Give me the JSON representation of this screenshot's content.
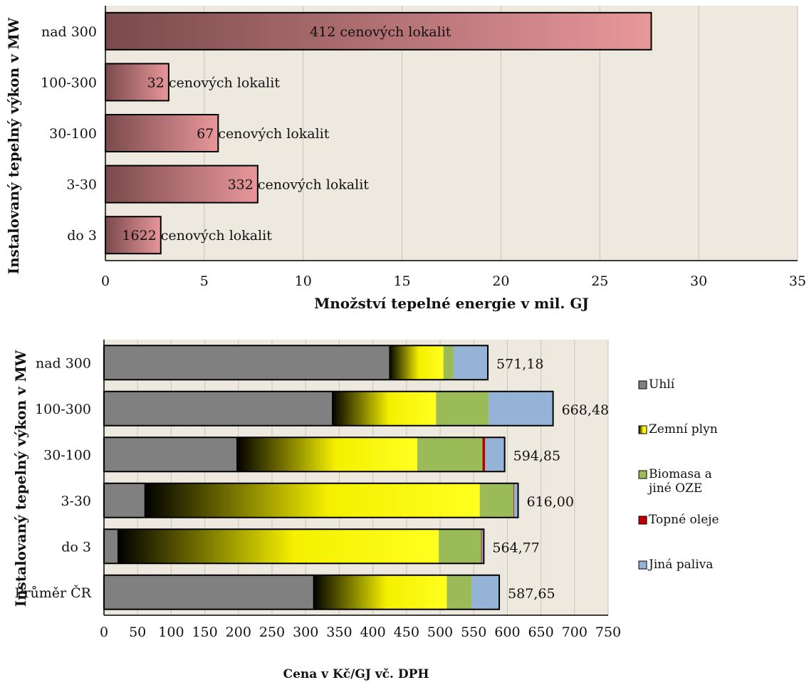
{
  "chart_data": [
    {
      "type": "bar",
      "orientation": "horizontal",
      "title": "",
      "xlabel": "Množství tepelné energie v mil. GJ",
      "ylabel": "Instalovaný tepelný výkon v MW",
      "xlim": [
        0,
        35
      ],
      "xticks": [
        "0",
        "5",
        "10",
        "15",
        "20",
        "25",
        "30",
        "35"
      ],
      "grid": true,
      "categories": [
        "nad 300",
        "100-300",
        "30-100",
        "3-30",
        "do 3"
      ],
      "values": [
        27.6,
        3.2,
        5.7,
        7.7,
        2.8
      ],
      "data_labels": [
        {
          "count": "412",
          "text": "cenových lokalit"
        },
        {
          "count": "32",
          "text": "cenových lokalit"
        },
        {
          "count": "67",
          "text": "cenových lokalit"
        },
        {
          "count": "332",
          "text": "cenových lokalit"
        },
        {
          "count": "1622",
          "text": "cenových lokalit"
        }
      ],
      "colors": {
        "bar_dark": "#7a4a4c",
        "bar_light": "#e8979a",
        "plot_bg": "#ede9df"
      }
    },
    {
      "type": "bar",
      "orientation": "horizontal",
      "stacked": true,
      "title": "",
      "xlabel": "Cena v Kč/GJ vč. DPH",
      "ylabel": "Instalovaný tepelný výkon v MW",
      "xlim": [
        0,
        750
      ],
      "xticks": [
        "0",
        "50",
        "100",
        "150",
        "200",
        "250",
        "300",
        "350",
        "400",
        "450",
        "500",
        "550",
        "600",
        "650",
        "700",
        "750"
      ],
      "grid": true,
      "legend_position": "right",
      "categories": [
        "nad 300",
        "100-300",
        "30-100",
        "3-30",
        "do 3",
        "Průměr ČR"
      ],
      "totals": [
        "571,18",
        "668,48",
        "594,85",
        "616,00",
        "564,77",
        "587,65"
      ],
      "series": [
        {
          "name": "Uhlí",
          "color": "#808080",
          "values": [
            424,
            339,
            197,
            60,
            20,
            311
          ]
        },
        {
          "name": "Zemní plyn",
          "color": "#f5f000",
          "values": [
            81,
            155,
            269,
            499,
            478,
            199
          ]
        },
        {
          "name": "Biomasa a jiné OZE",
          "color": "#9bbb59",
          "values": [
            15,
            78,
            97,
            50,
            63,
            37
          ]
        },
        {
          "name": "Topné oleje",
          "color": "#c00000",
          "values": [
            0,
            0,
            4,
            1,
            1,
            0
          ]
        },
        {
          "name": "Jiná paliva",
          "color": "#95b3d7",
          "values": [
            51,
            96,
            29,
            6,
            3,
            41
          ]
        }
      ],
      "colors": {
        "plot_bg": "#ede9df",
        "gas_dark": "#000000"
      }
    }
  ]
}
